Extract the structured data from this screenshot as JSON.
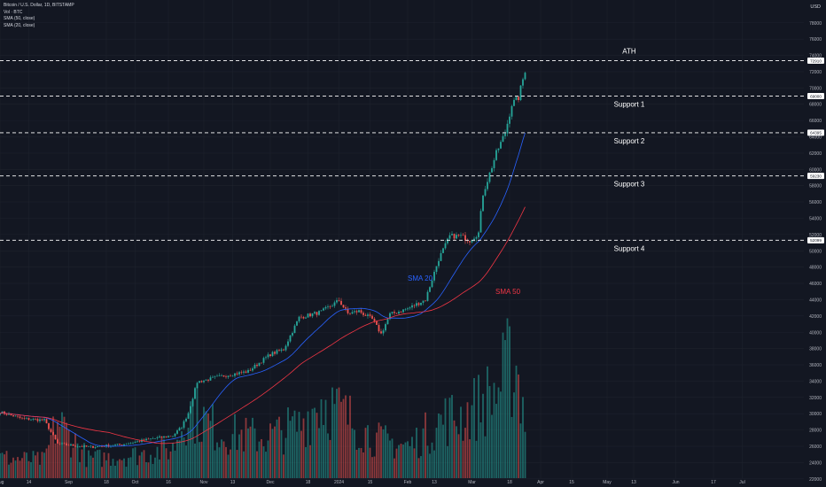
{
  "legend": {
    "title": "Bitcoin / U.S. Dollar, 1D, BITSTAMP",
    "vol": "Vol · BTC",
    "sma50": "SMA (50, close)",
    "sma20": "SMA (20, close)"
  },
  "currency": "USD",
  "colors": {
    "up": "#26a69a",
    "down": "#ef5350",
    "sma20": "#2962ff",
    "sma50": "#f23645",
    "bg": "#131722",
    "text": "#d1d4dc"
  },
  "chart_data": {
    "type": "candlestick",
    "y_ticks": [
      22000,
      24000,
      26000,
      28000,
      30000,
      32000,
      34000,
      36000,
      38000,
      40000,
      42000,
      44000,
      46000,
      48000,
      50000,
      52000,
      54000,
      56000,
      58000,
      60000,
      62000,
      64000,
      66000,
      68000,
      70000,
      72000,
      74000,
      76000,
      78000
    ],
    "y_range": [
      21000,
      80800
    ],
    "x_labels": [
      "Aug",
      "14",
      "Sep",
      "18",
      "Oct",
      "16",
      "Nov",
      "13",
      "Dec",
      "18",
      "2024",
      "15",
      "Feb",
      "13",
      "Mar",
      "18",
      "Apr",
      "15",
      "May",
      "13",
      "Jun",
      "17",
      "Jul"
    ],
    "x_label_days": [
      0,
      13,
      31,
      48,
      61,
      76,
      92,
      105,
      122,
      139,
      153,
      167,
      184,
      196,
      213,
      230,
      244,
      258,
      274,
      286,
      305,
      322,
      335
    ],
    "start_date": "2023-07-18",
    "levels": [
      {
        "name": "ATH",
        "label": "ATH",
        "price": 73350,
        "tag": "72910"
      },
      {
        "name": "support-1",
        "label": "Support 1",
        "price": 69000,
        "tag": "69000"
      },
      {
        "name": "support-2",
        "label": "Support 2",
        "price": 64500,
        "tag": "64395"
      },
      {
        "name": "support-3",
        "label": "Support 3",
        "price": 59200,
        "tag": "59230"
      },
      {
        "name": "support-4",
        "label": "Support 4",
        "price": 51300,
        "tag": "52099"
      }
    ],
    "annotations": [
      {
        "text": "SMA 20",
        "color": "#2962ff"
      },
      {
        "text": "SMA 50",
        "color": "#f23645"
      }
    ],
    "close_anchors": [
      [
        0,
        30200
      ],
      [
        10,
        29400
      ],
      [
        20,
        29200
      ],
      [
        26,
        26300
      ],
      [
        40,
        25900
      ],
      [
        55,
        26200
      ],
      [
        68,
        26900
      ],
      [
        78,
        27300
      ],
      [
        82,
        28400
      ],
      [
        85,
        30100
      ],
      [
        89,
        33900
      ],
      [
        100,
        34600
      ],
      [
        112,
        35200
      ],
      [
        122,
        37300
      ],
      [
        128,
        37900
      ],
      [
        135,
        41800
      ],
      [
        145,
        42500
      ],
      [
        153,
        43900
      ],
      [
        157,
        42300
      ],
      [
        162,
        42600
      ],
      [
        168,
        41600
      ],
      [
        172,
        39800
      ],
      [
        176,
        42200
      ],
      [
        184,
        42900
      ],
      [
        192,
        44000
      ],
      [
        198,
        49000
      ],
      [
        203,
        51800
      ],
      [
        208,
        51800
      ],
      [
        212,
        51300
      ],
      [
        216,
        52200
      ],
      [
        218,
        57000
      ],
      [
        224,
        62000
      ],
      [
        228,
        64500
      ],
      [
        231,
        68000
      ],
      [
        234,
        68800
      ],
      [
        237,
        72200
      ]
    ],
    "volume_anchors": [
      [
        0,
        1.6
      ],
      [
        20,
        1.4
      ],
      [
        26,
        4.5
      ],
      [
        40,
        1.5
      ],
      [
        60,
        1.8
      ],
      [
        78,
        2.3
      ],
      [
        85,
        5.5
      ],
      [
        100,
        3.5
      ],
      [
        120,
        3.2
      ],
      [
        135,
        4.1
      ],
      [
        145,
        6.2
      ],
      [
        155,
        5.0
      ],
      [
        170,
        3.0
      ],
      [
        185,
        2.5
      ],
      [
        200,
        4.6
      ],
      [
        210,
        5.0
      ],
      [
        218,
        6.0
      ],
      [
        225,
        7.0
      ],
      [
        229,
        8.6
      ],
      [
        233,
        8.8
      ],
      [
        237,
        4.9
      ]
    ],
    "series": [
      "Price (BTCUSD)",
      "Volume (BTC)",
      "SMA 20",
      "SMA 50"
    ]
  }
}
